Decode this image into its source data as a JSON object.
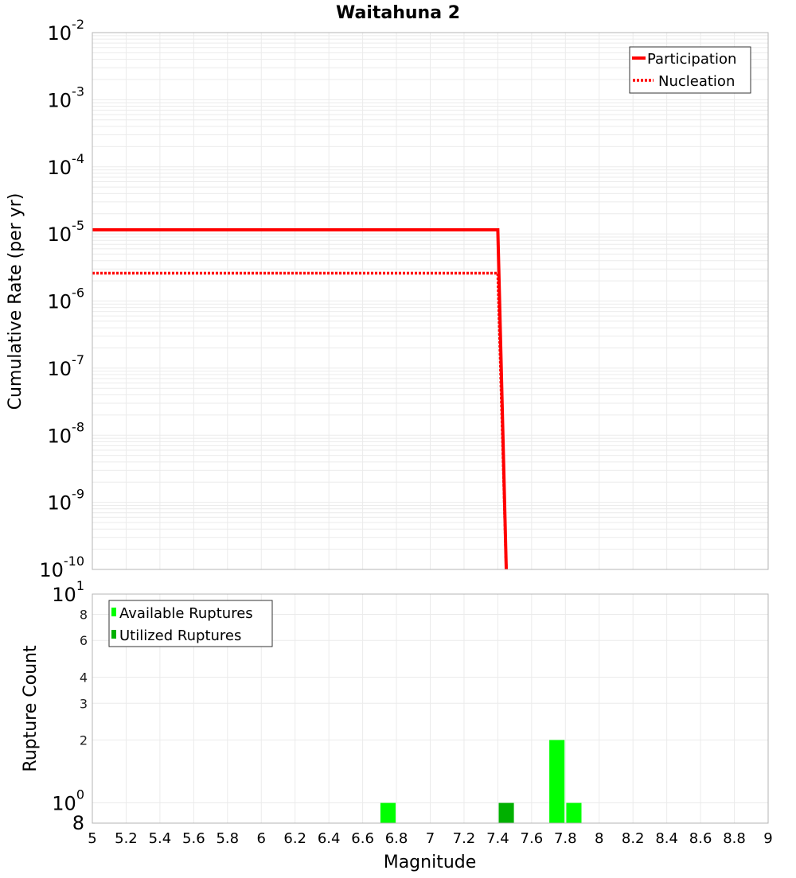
{
  "chart_data": [
    {
      "type": "line",
      "title": "Waitahuna 2",
      "xlabel": "Magnitude",
      "ylabel": "Cumulative Rate (per yr)",
      "yscale": "log",
      "xlim": [
        5,
        9
      ],
      "ylim": [
        1e-10,
        0.01
      ],
      "grid": true,
      "legend_position": "upper right",
      "y_ticks": [
        {
          "base": "10",
          "exp": "-2",
          "value": 0.01
        },
        {
          "base": "10",
          "exp": "-3",
          "value": 0.001
        },
        {
          "base": "10",
          "exp": "-4",
          "value": 0.0001
        },
        {
          "base": "10",
          "exp": "-5",
          "value": 1e-05
        },
        {
          "base": "10",
          "exp": "-6",
          "value": 1e-06
        },
        {
          "base": "10",
          "exp": "-7",
          "value": 1e-07
        },
        {
          "base": "10",
          "exp": "-8",
          "value": 1e-08
        },
        {
          "base": "10",
          "exp": "-9",
          "value": 1e-09
        },
        {
          "base": "10",
          "exp": "-10",
          "value": 1e-10
        }
      ],
      "series": [
        {
          "name": "Participation",
          "style": "solid",
          "color": "#ff0000",
          "x": [
            5.0,
            7.4,
            7.45
          ],
          "y": [
            1.15e-05,
            1.15e-05,
            1e-10
          ]
        },
        {
          "name": "Nucleation",
          "style": "dotted",
          "color": "#ff0000",
          "x": [
            5.0,
            7.4,
            7.45
          ],
          "y": [
            2.6e-06,
            2.6e-06,
            1e-10
          ]
        }
      ]
    },
    {
      "type": "bar",
      "xlabel": "Magnitude",
      "ylabel": "Rupture Count",
      "yscale": "log",
      "xlim": [
        5,
        9
      ],
      "ylim": [
        0.8,
        10
      ],
      "grid": true,
      "legend_position": "upper left",
      "x_ticks": [
        "5",
        "5.2",
        "5.4",
        "5.6",
        "5.8",
        "6",
        "6.2",
        "6.4",
        "6.6",
        "6.8",
        "7",
        "7.2",
        "7.4",
        "7.6",
        "7.8",
        "8",
        "8.2",
        "8.4",
        "8.6",
        "8.8",
        "9"
      ],
      "y_ticks": [
        {
          "label": "8",
          "value": 0.8,
          "major": true
        },
        {
          "label": "10",
          "exp": "0",
          "value": 1,
          "major": true
        },
        {
          "label": "2",
          "value": 2
        },
        {
          "label": "3",
          "value": 3
        },
        {
          "label": "4",
          "value": 4
        },
        {
          "label": "6",
          "value": 6
        },
        {
          "label": "8",
          "value": 8
        },
        {
          "label": "10",
          "exp": "1",
          "value": 10,
          "major": true
        }
      ],
      "bar_width": 0.09,
      "series": [
        {
          "name": "Available Ruptures",
          "color": "#00ff00",
          "x": [
            6.75,
            7.75,
            7.85
          ],
          "values": [
            1,
            2,
            1
          ]
        },
        {
          "name": "Utilized Ruptures",
          "color": "#00b000",
          "x": [
            7.45
          ],
          "values": [
            1
          ]
        }
      ]
    }
  ],
  "colors": {
    "grid": "#ebebeb",
    "frame": "#b4b4b4",
    "legend_border": "#333333"
  }
}
